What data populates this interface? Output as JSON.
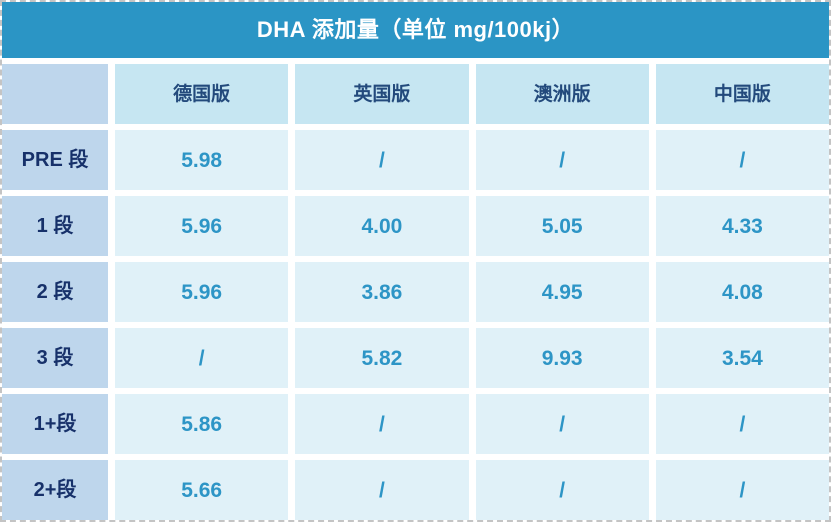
{
  "title": "DHA 添加量（单位 mg/100kj）",
  "table": {
    "columns": [
      "德国版",
      "英国版",
      "澳洲版",
      "中国版"
    ],
    "rows": [
      {
        "label": "PRE 段",
        "values": [
          "5.98",
          "/",
          "/",
          "/"
        ]
      },
      {
        "label": "1 段",
        "values": [
          "5.96",
          "4.00",
          "5.05",
          "4.33"
        ]
      },
      {
        "label": "2 段",
        "values": [
          "5.96",
          "3.86",
          "4.95",
          "4.08"
        ]
      },
      {
        "label": "3 段",
        "values": [
          "/",
          "5.82",
          "9.93",
          "3.54"
        ]
      },
      {
        "label": "1+段",
        "values": [
          "5.86",
          "/",
          "/",
          "/"
        ]
      },
      {
        "label": "2+段",
        "values": [
          "5.66",
          "/",
          "/",
          "/"
        ]
      }
    ]
  },
  "chart_data": {
    "type": "table",
    "title": "DHA 添加量（单位 mg/100kj）",
    "unit": "mg/100kj",
    "columns": [
      "德国版",
      "英国版",
      "澳洲版",
      "中国版"
    ],
    "row_labels": [
      "PRE 段",
      "1 段",
      "2 段",
      "3 段",
      "1+段",
      "2+段"
    ],
    "values": [
      [
        5.98,
        null,
        null,
        null
      ],
      [
        5.96,
        4.0,
        5.05,
        4.33
      ],
      [
        5.96,
        3.86,
        4.95,
        4.08
      ],
      [
        null,
        5.82,
        9.93,
        3.54
      ],
      [
        5.86,
        null,
        null,
        null
      ],
      [
        5.66,
        null,
        null,
        null
      ]
    ],
    "missing_value_symbol": "/"
  },
  "colors": {
    "title_bg": "#2b95c5",
    "title_text": "#ffffff",
    "column_header_bg": "#c6e6f2",
    "column_header_text": "#234a7c",
    "row_header_bg": "#bed6ec",
    "row_header_text": "#17316a",
    "value_cell_bg": "#e0f1f8",
    "value_text": "#2d95c6",
    "gap": "#ffffff",
    "dashed_border": "#c4c4c4"
  }
}
